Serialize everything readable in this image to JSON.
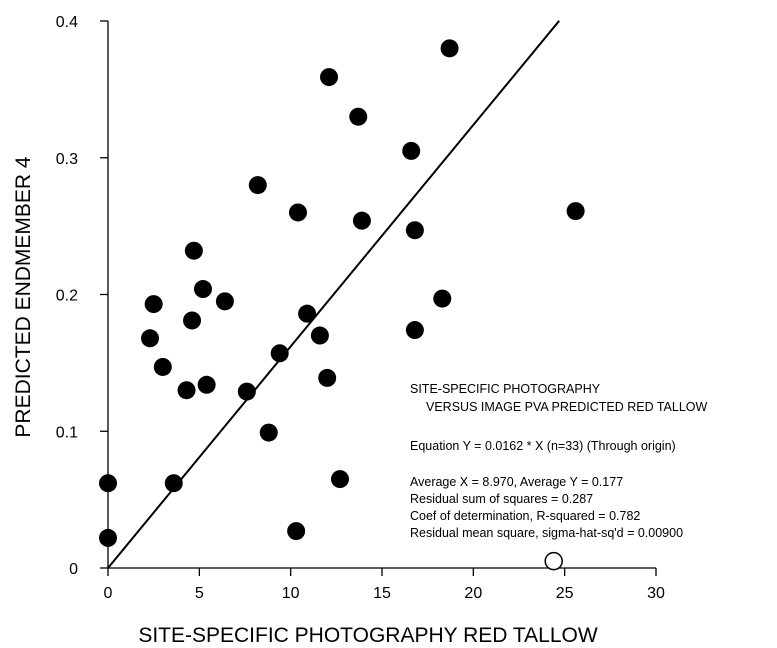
{
  "chart_data": {
    "type": "scatter",
    "xlabel": "SITE-SPECIFIC PHOTOGRAPHY RED TALLOW",
    "ylabel": "PREDICTED ENDMEMBER 4",
    "xlim": [
      0,
      30
    ],
    "ylim": [
      0,
      0.4
    ],
    "xticks": [
      0,
      5,
      10,
      15,
      20,
      25,
      30
    ],
    "xtick_labels": [
      "0",
      "5",
      "10",
      "15",
      "20",
      "25",
      "30"
    ],
    "yticks": [
      0,
      0.1,
      0.2,
      0.3,
      0.4
    ],
    "ytick_labels": [
      "0",
      "0.1",
      "0.2",
      "0.3",
      "0.4"
    ],
    "grid": false,
    "points": [
      {
        "x": 0.0,
        "y": 0.062
      },
      {
        "x": 0.0,
        "y": 0.022
      },
      {
        "x": 3.6,
        "y": 0.062
      },
      {
        "x": 2.3,
        "y": 0.168
      },
      {
        "x": 2.5,
        "y": 0.193
      },
      {
        "x": 3.0,
        "y": 0.147
      },
      {
        "x": 4.3,
        "y": 0.13
      },
      {
        "x": 4.6,
        "y": 0.181
      },
      {
        "x": 4.7,
        "y": 0.232
      },
      {
        "x": 5.2,
        "y": 0.204
      },
      {
        "x": 5.4,
        "y": 0.134
      },
      {
        "x": 6.4,
        "y": 0.195
      },
      {
        "x": 7.6,
        "y": 0.129
      },
      {
        "x": 8.2,
        "y": 0.28
      },
      {
        "x": 8.8,
        "y": 0.099
      },
      {
        "x": 9.4,
        "y": 0.157
      },
      {
        "x": 10.3,
        "y": 0.027
      },
      {
        "x": 10.4,
        "y": 0.26
      },
      {
        "x": 10.9,
        "y": 0.186
      },
      {
        "x": 11.6,
        "y": 0.17
      },
      {
        "x": 12.0,
        "y": 0.139
      },
      {
        "x": 12.1,
        "y": 0.359
      },
      {
        "x": 12.7,
        "y": 0.065
      },
      {
        "x": 13.7,
        "y": 0.33
      },
      {
        "x": 13.9,
        "y": 0.254
      },
      {
        "x": 16.6,
        "y": 0.305
      },
      {
        "x": 16.8,
        "y": 0.247
      },
      {
        "x": 16.8,
        "y": 0.174
      },
      {
        "x": 18.3,
        "y": 0.197
      },
      {
        "x": 18.7,
        "y": 0.38
      },
      {
        "x": 25.6,
        "y": 0.261
      }
    ],
    "open_points": [
      {
        "x": 24.4,
        "y": 0.005
      }
    ],
    "fit_line": {
      "slope": 0.0162,
      "intercept": 0,
      "x_from": 0,
      "x_to": 24.7
    },
    "annotations": [
      "SITE-SPECIFIC PHOTOGRAPHY",
      "VERSUS IMAGE PVA PREDICTED RED TALLOW",
      "Equation Y = 0.0162 * X (n=33) (Through origin)",
      "Average X = 8.970, Average Y = 0.177",
      "Residual sum of squares = 0.287",
      "Coef of determination, R-squared = 0.782",
      "Residual mean square, sigma-hat-sq'd = 0.00900"
    ]
  }
}
